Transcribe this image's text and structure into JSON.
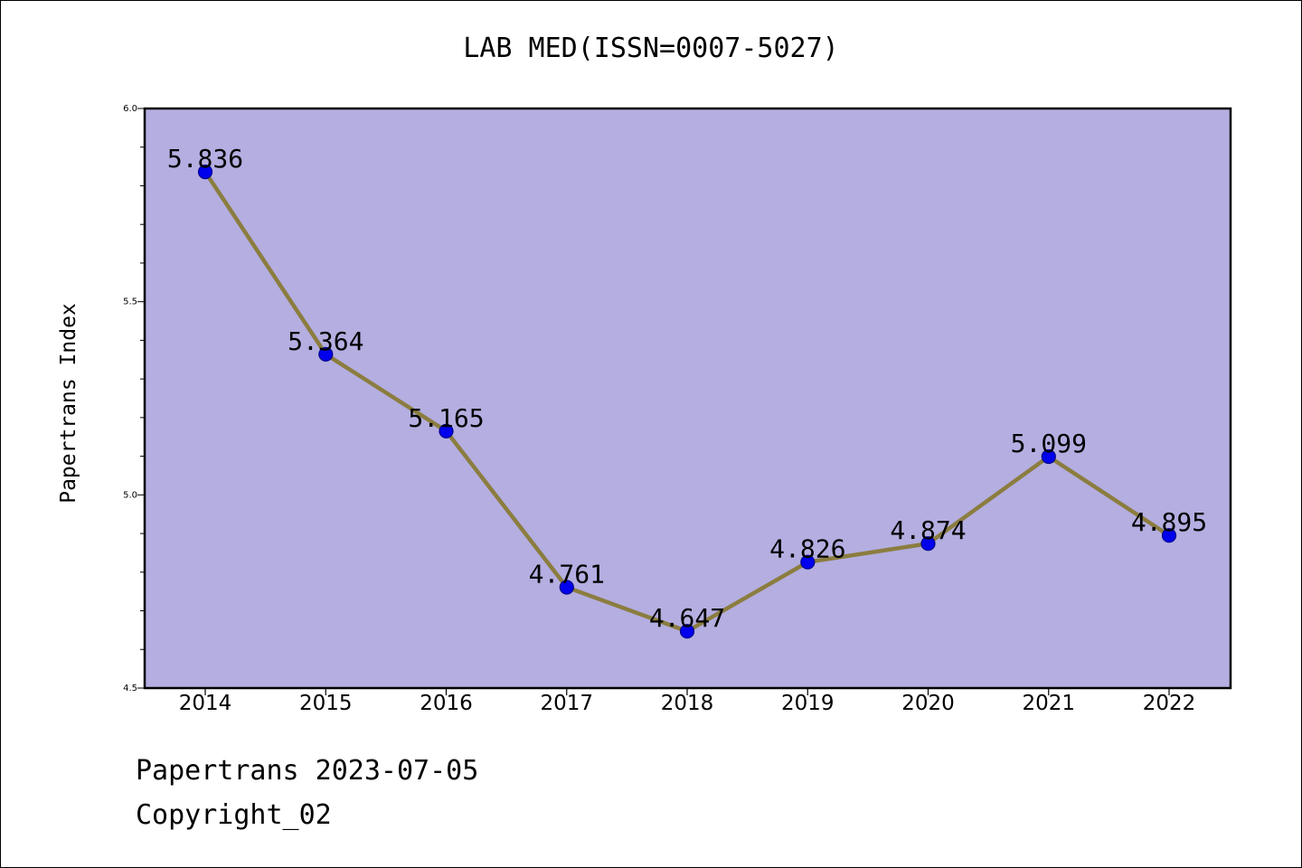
{
  "chart_data": {
    "type": "line",
    "title": "LAB MED(ISSN=0007-5027)",
    "xlabel": "",
    "ylabel": "Papertrans Index",
    "categories": [
      "2014",
      "2015",
      "2016",
      "2017",
      "2018",
      "2019",
      "2020",
      "2021",
      "2022"
    ],
    "series": [
      {
        "values": [
          5.836,
          5.364,
          5.165,
          4.761,
          4.647,
          4.826,
          4.874,
          5.099,
          4.895
        ],
        "labels": [
          "5.836",
          "5.364",
          "5.165",
          "4.761",
          "4.647",
          "4.826",
          "4.874",
          "5.099",
          "4.895"
        ]
      }
    ],
    "ylim": [
      4.5,
      6.0
    ],
    "yticks": [
      "4.5",
      "5.0",
      "5.5",
      "6.0"
    ],
    "grid": false,
    "legend": "none",
    "colors": {
      "plot_background": "#b4aee1",
      "line": "#8b7d3f",
      "marker": "#0000ee",
      "marker_edge": "#00008b"
    }
  },
  "footer": {
    "date_text": "Papertrans 2023-07-05",
    "copyright_text": "Copyright_02"
  }
}
